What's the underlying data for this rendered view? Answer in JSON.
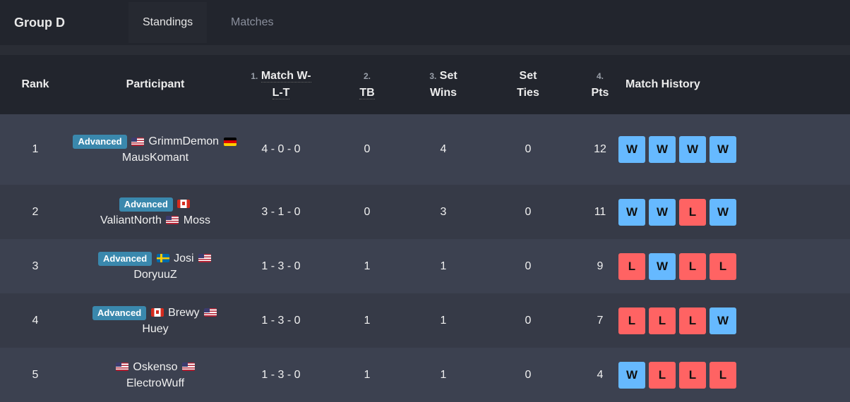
{
  "header": {
    "title": "Group D",
    "tabs": [
      {
        "label": "Standings",
        "active": true
      },
      {
        "label": "Matches",
        "active": false
      }
    ]
  },
  "columns": {
    "rank": "Rank",
    "participant": "Participant",
    "match_num": "1.",
    "match": "Match W-",
    "match2": "L-T",
    "tb_num": "2.",
    "tb": "TB",
    "sw_num": "3.",
    "sw": "Set",
    "sw2": "Wins",
    "ties": "Set",
    "ties2": "Ties",
    "pts_num": "4.",
    "pts": "Pts",
    "history": "Match History"
  },
  "colors": {
    "win": "#66b9ff",
    "loss": "#ff6363",
    "badge": "#3a88ad"
  },
  "rows": [
    {
      "rank": "1",
      "badge": "Advanced",
      "line1": [
        "Advanced",
        "flag:us"
      ],
      "p": [
        {
          "flag": "us"
        },
        {
          "name": "GrimmDemon"
        },
        {
          "flag": "de"
        },
        {
          "br": 1
        },
        {
          "name": "MausKomant"
        }
      ],
      "record": "4 - 0 - 0",
      "tb": "0",
      "set_wins": "4",
      "set_ties": "0",
      "pts": "12",
      "history": [
        "W",
        "W",
        "W",
        "W"
      ]
    },
    {
      "rank": "2",
      "badge": "Advanced",
      "p": [
        {
          "flag": "ca"
        },
        {
          "br": 1
        },
        {
          "name": "ValiantNorth"
        },
        {
          "flag": "us"
        },
        {
          "name": "Moss"
        }
      ],
      "record": "3 - 1 - 0",
      "tb": "0",
      "set_wins": "3",
      "set_ties": "0",
      "pts": "11",
      "history": [
        "W",
        "W",
        "L",
        "W"
      ]
    },
    {
      "rank": "3",
      "badge": "Advanced",
      "p": [
        {
          "flag": "se"
        },
        {
          "name": "Josi"
        },
        {
          "flag": "us"
        },
        {
          "br": 1
        },
        {
          "name": "DoryuuZ"
        }
      ],
      "record": "1 - 3 - 0",
      "tb": "1",
      "set_wins": "1",
      "set_ties": "0",
      "pts": "9",
      "history": [
        "L",
        "W",
        "L",
        "L"
      ]
    },
    {
      "rank": "4",
      "badge": "Advanced",
      "p": [
        {
          "flag": "ca"
        },
        {
          "name": "Brewy"
        },
        {
          "flag": "us"
        },
        {
          "br": 1
        },
        {
          "name": "Huey"
        }
      ],
      "record": "1 - 3 - 0",
      "tb": "1",
      "set_wins": "1",
      "set_ties": "0",
      "pts": "7",
      "history": [
        "L",
        "L",
        "L",
        "W"
      ]
    },
    {
      "rank": "5",
      "badge": "",
      "p": [
        {
          "flag": "us"
        },
        {
          "name": "Oskenso"
        },
        {
          "flag": "us"
        },
        {
          "br": 1
        },
        {
          "name": "ElectroWuff"
        }
      ],
      "record": "1 - 3 - 0",
      "tb": "1",
      "set_wins": "1",
      "set_ties": "0",
      "pts": "4",
      "history": [
        "W",
        "L",
        "L",
        "L"
      ]
    }
  ]
}
